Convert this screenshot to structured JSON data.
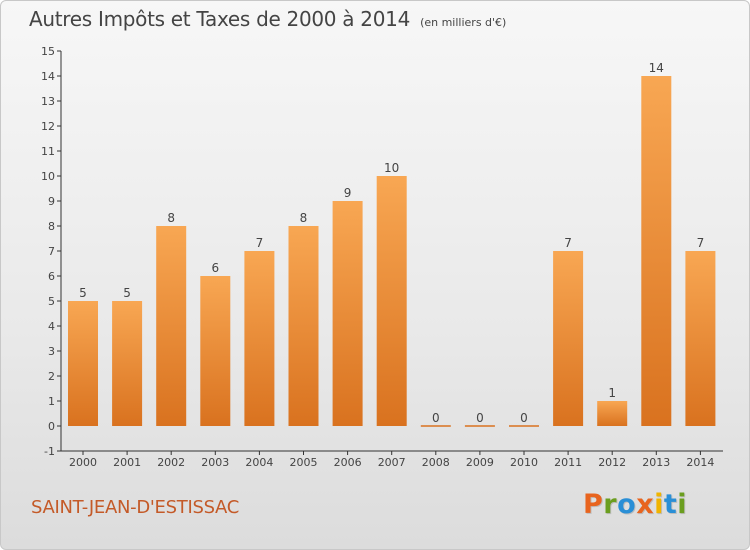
{
  "header": {
    "title": "Autres Impôts et Taxes de 2000 à 2014",
    "unit": "(en milliers d'€)"
  },
  "footer": {
    "place": "SAINT-JEAN-D'ESTISSAC",
    "logo_letters": [
      "P",
      "r",
      "o",
      "x",
      "i",
      "t",
      "i"
    ],
    "logo_colors": [
      "#e8641e",
      "#6b9e1f",
      "#2a8fd6",
      "#e8641e",
      "#f0b400",
      "#2a8fd6",
      "#6b9e1f"
    ]
  },
  "colors": {
    "bar_light": "#f8a753",
    "bar_dark": "#d9721f",
    "axis": "#333333",
    "text": "#444444",
    "title": "#444444",
    "place": "#c45a28"
  },
  "chart_data": {
    "type": "bar",
    "categories": [
      "2000",
      "2001",
      "2002",
      "2003",
      "2004",
      "2005",
      "2006",
      "2007",
      "2008",
      "2009",
      "2010",
      "2011",
      "2012",
      "2013",
      "2014"
    ],
    "values": [
      5,
      5,
      8,
      6,
      7,
      8,
      9,
      10,
      0,
      0,
      0,
      7,
      1,
      14,
      7
    ],
    "data_labels": [
      "5",
      "5",
      "8",
      "6",
      "7",
      "8",
      "9",
      "10",
      "0",
      "0",
      "0",
      "7",
      "1",
      "14",
      "7"
    ],
    "y_ticks": [
      "-1",
      "0",
      "1",
      "2",
      "3",
      "4",
      "5",
      "6",
      "7",
      "8",
      "9",
      "10",
      "11",
      "12",
      "13",
      "14",
      "15"
    ],
    "ylim": [
      -1,
      15
    ],
    "grid": false,
    "legend": "none"
  }
}
